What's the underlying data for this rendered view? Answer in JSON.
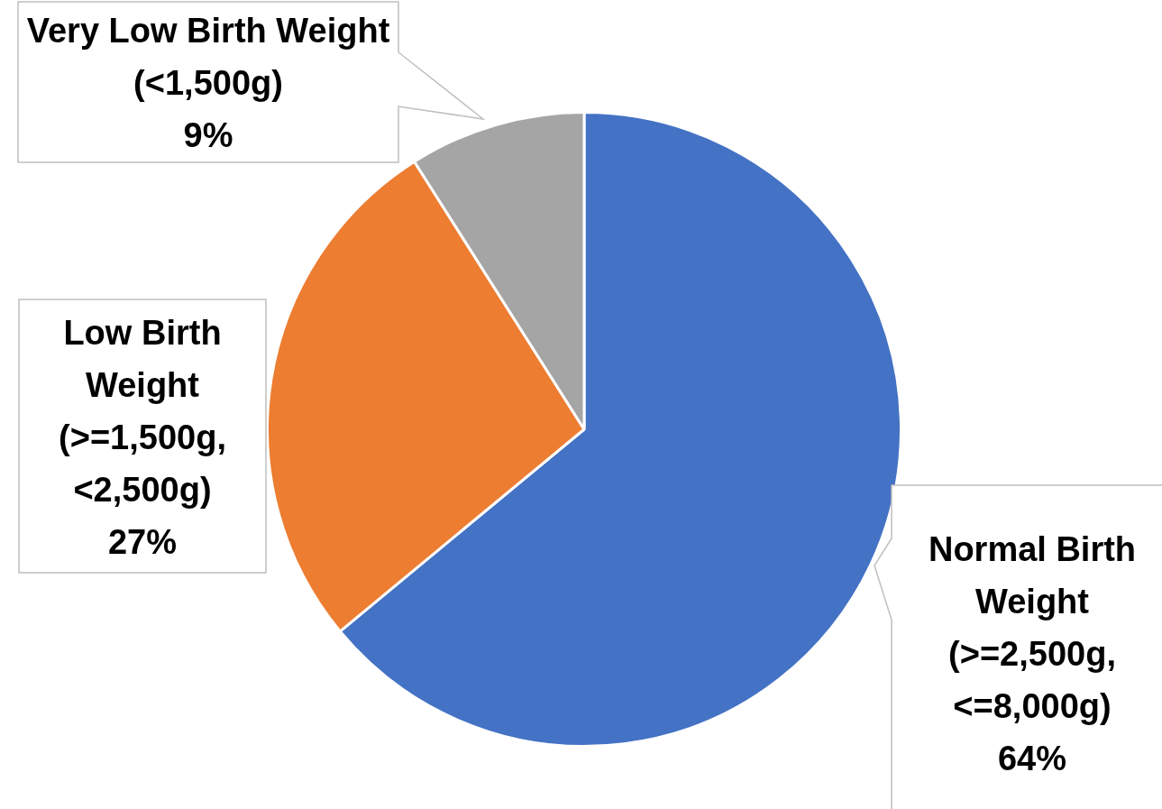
{
  "chart_data": {
    "type": "pie",
    "categories": [
      "Normal Birth Weight (>=2,500g, <=8,000g)",
      "Low Birth Weight (>=1,500g, <2,500g)",
      "Very Low Birth Weight (<1,500g)"
    ],
    "values": [
      64,
      27,
      9
    ],
    "colors": [
      "#4472c4",
      "#ed7d31",
      "#a5a5a5"
    ],
    "value_labels": [
      "64%",
      "27%",
      "9%"
    ],
    "legend": false
  }
}
